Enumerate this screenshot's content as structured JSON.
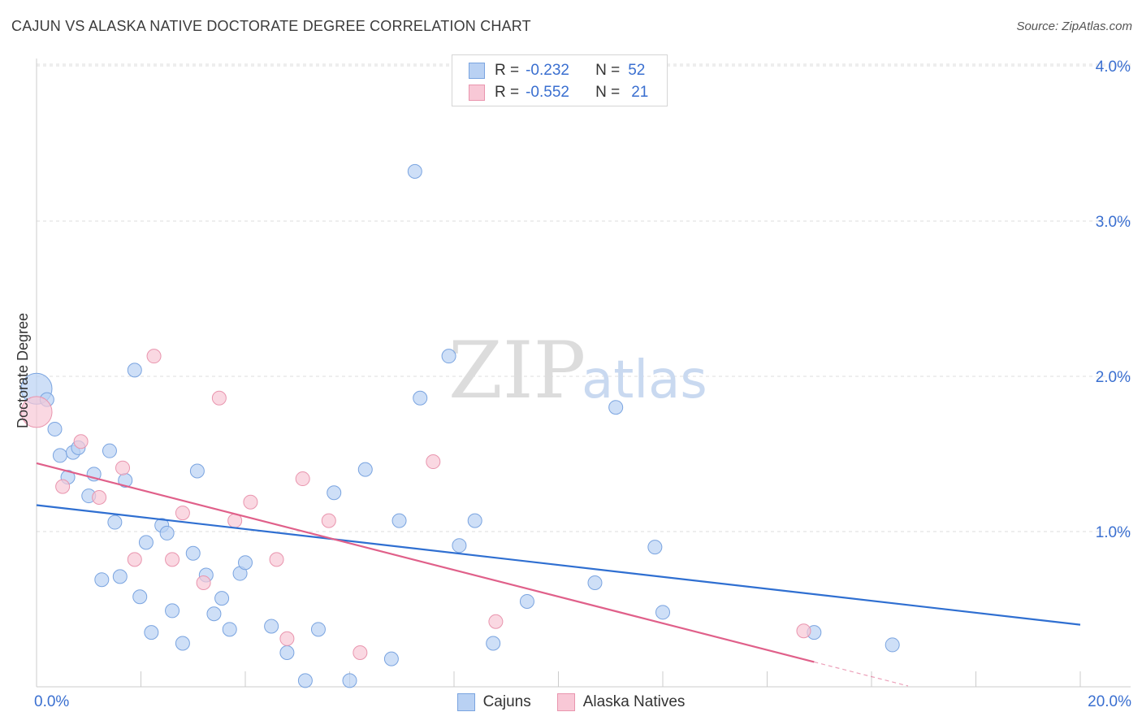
{
  "header": {
    "title": "CAJUN VS ALASKA NATIVE DOCTORATE DEGREE CORRELATION CHART",
    "source": "Source: ZipAtlas.com"
  },
  "watermark": {
    "zip": "ZIP",
    "atlas": "atlas"
  },
  "legend": {
    "rows": [
      {
        "r_label": "R =",
        "r_value": "-0.232",
        "n_label": "N =",
        "n_value": "52",
        "fill": "#b9d1f3",
        "stroke": "#7aa4e0"
      },
      {
        "r_label": "R =",
        "r_value": "-0.552",
        "n_label": "N =",
        "n_value": "21",
        "fill": "#f8c8d6",
        "stroke": "#e995ae"
      }
    ]
  },
  "bottom_legend": {
    "cajuns": "Cajuns",
    "alaska": "Alaska Natives"
  },
  "chart_data": {
    "type": "scatter",
    "title": "CAJUN VS ALASKA NATIVE DOCTORATE DEGREE CORRELATION CHART",
    "xlabel": "",
    "ylabel": "Doctorate Degree",
    "xlim": [
      0,
      20
    ],
    "ylim": [
      0,
      4.1
    ],
    "x_tick_labels": [
      {
        "value": 0,
        "label": "0.0%"
      },
      {
        "value": 20,
        "label": "20.0%"
      }
    ],
    "x_minor_ticks": [
      0,
      2,
      4,
      6,
      8,
      10,
      12,
      14,
      16,
      18,
      20
    ],
    "y_ticks": [
      {
        "value": 1,
        "label": "1.0%"
      },
      {
        "value": 2,
        "label": "2.0%"
      },
      {
        "value": 3,
        "label": "3.0%"
      },
      {
        "value": 4,
        "label": "4.0%"
      }
    ],
    "grid": true,
    "series": [
      {
        "name": "Cajuns",
        "color": "#b9d1f3",
        "stroke": "#7aa4e0",
        "line_color": "#2f6fd1",
        "trend": {
          "x0": 0,
          "y0": 1.17,
          "x1": 20,
          "y1": 0.4
        },
        "points": [
          {
            "x": 0.0,
            "y": 1.92,
            "big": true
          },
          {
            "x": 0.2,
            "y": 1.85
          },
          {
            "x": 0.35,
            "y": 1.66
          },
          {
            "x": 0.45,
            "y": 1.49
          },
          {
            "x": 0.6,
            "y": 1.35
          },
          {
            "x": 0.7,
            "y": 1.51
          },
          {
            "x": 0.8,
            "y": 1.54
          },
          {
            "x": 1.0,
            "y": 1.23
          },
          {
            "x": 1.1,
            "y": 1.37
          },
          {
            "x": 1.25,
            "y": 0.69
          },
          {
            "x": 1.4,
            "y": 1.52
          },
          {
            "x": 1.5,
            "y": 1.06
          },
          {
            "x": 1.6,
            "y": 0.71
          },
          {
            "x": 1.7,
            "y": 1.33
          },
          {
            "x": 1.88,
            "y": 2.04
          },
          {
            "x": 1.98,
            "y": 0.58
          },
          {
            "x": 2.1,
            "y": 0.93
          },
          {
            "x": 2.2,
            "y": 0.35
          },
          {
            "x": 2.4,
            "y": 1.04
          },
          {
            "x": 2.5,
            "y": 0.99
          },
          {
            "x": 2.6,
            "y": 0.49
          },
          {
            "x": 2.8,
            "y": 0.28
          },
          {
            "x": 3.0,
            "y": 0.86
          },
          {
            "x": 3.08,
            "y": 1.39
          },
          {
            "x": 3.25,
            "y": 0.72
          },
          {
            "x": 3.4,
            "y": 0.47
          },
          {
            "x": 3.55,
            "y": 0.57
          },
          {
            "x": 3.7,
            "y": 0.37
          },
          {
            "x": 3.9,
            "y": 0.73
          },
          {
            "x": 4.0,
            "y": 0.8
          },
          {
            "x": 4.5,
            "y": 0.39
          },
          {
            "x": 4.8,
            "y": 0.22
          },
          {
            "x": 5.15,
            "y": 0.04
          },
          {
            "x": 5.4,
            "y": 0.37
          },
          {
            "x": 5.7,
            "y": 1.25
          },
          {
            "x": 6.0,
            "y": 0.04
          },
          {
            "x": 6.3,
            "y": 1.4
          },
          {
            "x": 6.8,
            "y": 0.18
          },
          {
            "x": 6.95,
            "y": 1.07
          },
          {
            "x": 7.25,
            "y": 3.32
          },
          {
            "x": 7.35,
            "y": 1.86
          },
          {
            "x": 7.9,
            "y": 2.13
          },
          {
            "x": 8.1,
            "y": 0.91
          },
          {
            "x": 8.4,
            "y": 1.07
          },
          {
            "x": 8.75,
            "y": 0.28
          },
          {
            "x": 9.4,
            "y": 0.55
          },
          {
            "x": 10.7,
            "y": 0.67
          },
          {
            "x": 11.1,
            "y": 1.8
          },
          {
            "x": 11.85,
            "y": 0.9
          },
          {
            "x": 12.0,
            "y": 0.48
          },
          {
            "x": 14.9,
            "y": 0.35
          },
          {
            "x": 16.4,
            "y": 0.27
          }
        ]
      },
      {
        "name": "Alaska Natives",
        "color": "#f8c8d6",
        "stroke": "#e995ae",
        "line_color": "#e0608a",
        "trend": {
          "x0": 0,
          "y0": 1.44,
          "x1": 14.9,
          "y1": 0.16,
          "dash_to_x": 16.7
        },
        "points": [
          {
            "x": 0.0,
            "y": 1.77,
            "big": true
          },
          {
            "x": 0.5,
            "y": 1.29
          },
          {
            "x": 0.85,
            "y": 1.58
          },
          {
            "x": 1.2,
            "y": 1.22
          },
          {
            "x": 1.65,
            "y": 1.41
          },
          {
            "x": 1.88,
            "y": 0.82
          },
          {
            "x": 2.25,
            "y": 2.13
          },
          {
            "x": 2.6,
            "y": 0.82
          },
          {
            "x": 2.8,
            "y": 1.12
          },
          {
            "x": 3.2,
            "y": 0.67
          },
          {
            "x": 3.5,
            "y": 1.86
          },
          {
            "x": 3.8,
            "y": 1.07
          },
          {
            "x": 4.1,
            "y": 1.19
          },
          {
            "x": 4.6,
            "y": 0.82
          },
          {
            "x": 4.8,
            "y": 0.31
          },
          {
            "x": 5.1,
            "y": 1.34
          },
          {
            "x": 5.6,
            "y": 1.07
          },
          {
            "x": 6.2,
            "y": 0.22
          },
          {
            "x": 7.6,
            "y": 1.45
          },
          {
            "x": 8.8,
            "y": 0.42
          },
          {
            "x": 14.7,
            "y": 0.36
          }
        ]
      }
    ]
  }
}
